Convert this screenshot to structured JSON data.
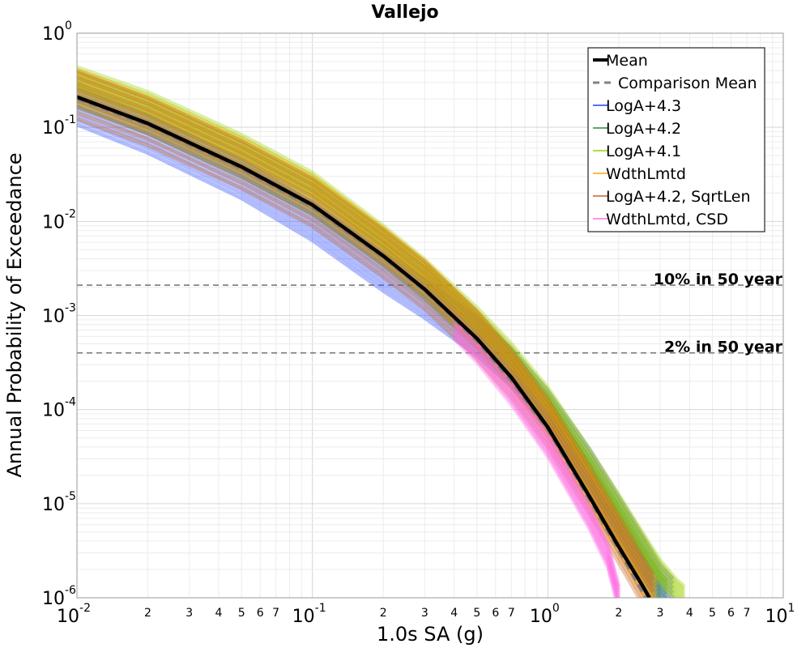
{
  "chart_data": {
    "type": "line",
    "title": "Vallejo",
    "xlabel": "1.0s SA (g)",
    "ylabel": "Annual Probability of Exceedance",
    "xscale": "log",
    "yscale": "log",
    "xlim": [
      0.01,
      10
    ],
    "ylim": [
      1e-06,
      1
    ],
    "grid": true,
    "legend_position": "top-right",
    "x_major_ticks": [
      {
        "base": "10",
        "exp": "-2",
        "value": 0.01
      },
      {
        "base": "10",
        "exp": "-1",
        "value": 0.1
      },
      {
        "base": "10",
        "exp": "0",
        "value": 1
      },
      {
        "base": "10",
        "exp": "1",
        "value": 10
      }
    ],
    "x_minor_tick_labels": [
      "2",
      "3",
      "4",
      "5",
      "6",
      "7"
    ],
    "y_major_ticks": [
      {
        "base": "10",
        "exp": "0",
        "value": 1
      },
      {
        "base": "10",
        "exp": "-1",
        "value": 0.1
      },
      {
        "base": "10",
        "exp": "-2",
        "value": 0.01
      },
      {
        "base": "10",
        "exp": "-3",
        "value": 0.001
      },
      {
        "base": "10",
        "exp": "-4",
        "value": 0.0001
      },
      {
        "base": "10",
        "exp": "-5",
        "value": 1e-05
      },
      {
        "base": "10",
        "exp": "-6",
        "value": 1e-06
      }
    ],
    "reference_lines": [
      {
        "label": "10% in 50 year",
        "y": 0.0021
      },
      {
        "label": "2% in 50 year",
        "y": 0.0004
      }
    ],
    "series": [
      {
        "name": "Mean",
        "color": "#000000",
        "style": "solid-thick",
        "x": [
          0.01,
          0.02,
          0.05,
          0.1,
          0.2,
          0.3,
          0.5,
          0.7,
          1.0,
          1.5,
          2.0,
          2.5,
          2.7
        ],
        "y": [
          0.21,
          0.11,
          0.038,
          0.015,
          0.0043,
          0.0019,
          0.00057,
          0.00022,
          6.5e-05,
          1.2e-05,
          3.5e-06,
          1.4e-06,
          1e-06
        ]
      },
      {
        "name": "Comparison Mean",
        "color": "#808080",
        "style": "dashed",
        "x": [
          0.01,
          0.02,
          0.05,
          0.1,
          0.2,
          0.3,
          0.5,
          0.7,
          1.0,
          1.5,
          2.0,
          2.6
        ],
        "y": [
          0.2,
          0.105,
          0.036,
          0.014,
          0.0041,
          0.0018,
          0.00053,
          0.0002,
          6e-05,
          1.1e-05,
          3.2e-06,
          1e-06
        ]
      },
      {
        "name": "LogA+4.3",
        "color": "#1f3fff",
        "style": "band",
        "x": [
          0.01,
          0.02,
          0.05,
          0.1,
          0.2,
          0.3,
          0.5,
          0.7,
          1.0,
          1.5,
          2.0,
          2.5,
          3.0,
          3.4
        ],
        "y": [
          0.17,
          0.085,
          0.028,
          0.01,
          0.0029,
          0.0015,
          0.0006,
          0.00028,
          0.0001,
          2.4e-05,
          7.5e-06,
          3e-06,
          1.4e-06,
          1e-06
        ],
        "spread": 0.2
      },
      {
        "name": "LogA+4.2",
        "color": "#2e8b2e",
        "style": "band",
        "x": [
          0.01,
          0.02,
          0.05,
          0.1,
          0.2,
          0.3,
          0.5,
          0.7,
          1.0,
          1.5,
          2.0,
          2.5,
          3.0,
          3.2
        ],
        "y": [
          0.25,
          0.13,
          0.045,
          0.018,
          0.0052,
          0.0023,
          0.0007,
          0.00028,
          9e-05,
          1.9e-05,
          6e-06,
          2.4e-06,
          1.2e-06,
          1e-06
        ],
        "spread": 0.18
      },
      {
        "name": "LogA+4.1",
        "color": "#9acd00",
        "style": "band",
        "x": [
          0.01,
          0.02,
          0.05,
          0.1,
          0.2,
          0.3,
          0.5,
          0.7,
          1.0,
          1.5,
          2.0,
          2.5,
          3.0,
          3.5,
          3.8
        ],
        "y": [
          0.33,
          0.18,
          0.063,
          0.025,
          0.0068,
          0.003,
          0.00092,
          0.00038,
          0.00013,
          2.9e-05,
          9.5e-06,
          3.9e-06,
          1.9e-06,
          1.2e-06,
          1e-06
        ],
        "spread": 0.12
      },
      {
        "name": "WdthLmtd",
        "color": "#ffa500",
        "style": "band",
        "x": [
          0.01,
          0.02,
          0.05,
          0.1,
          0.2,
          0.3,
          0.5,
          0.7,
          1.0,
          1.5,
          2.0,
          2.5,
          2.9
        ],
        "y": [
          0.27,
          0.14,
          0.05,
          0.02,
          0.0056,
          0.0025,
          0.00072,
          0.00027,
          8e-05,
          1.5e-05,
          4.5e-06,
          1.7e-06,
          1e-06
        ],
        "spread": 0.18
      },
      {
        "name": "LogA+4.2, SqrtLen",
        "color": "#c8641e",
        "style": "band",
        "x": [
          0.01,
          0.02,
          0.05,
          0.1,
          0.2,
          0.3,
          0.5,
          0.7,
          1.0,
          1.5,
          2.0,
          2.5,
          2.8
        ],
        "y": [
          0.22,
          0.115,
          0.04,
          0.016,
          0.0046,
          0.0021,
          0.00062,
          0.00024,
          7.2e-05,
          1.4e-05,
          4.2e-06,
          1.6e-06,
          1e-06
        ],
        "spread": 0.25
      },
      {
        "name": "WdthLmtd, CSD",
        "color": "#ff6ee6",
        "style": "band",
        "x": [
          0.4,
          0.5,
          0.7,
          1.0,
          1.5,
          1.8,
          2.0
        ],
        "y": [
          0.00075,
          0.00042,
          0.00015,
          4.2e-05,
          7.2e-06,
          2.8e-06,
          1e-06
        ],
        "spread": 0.12
      }
    ]
  }
}
